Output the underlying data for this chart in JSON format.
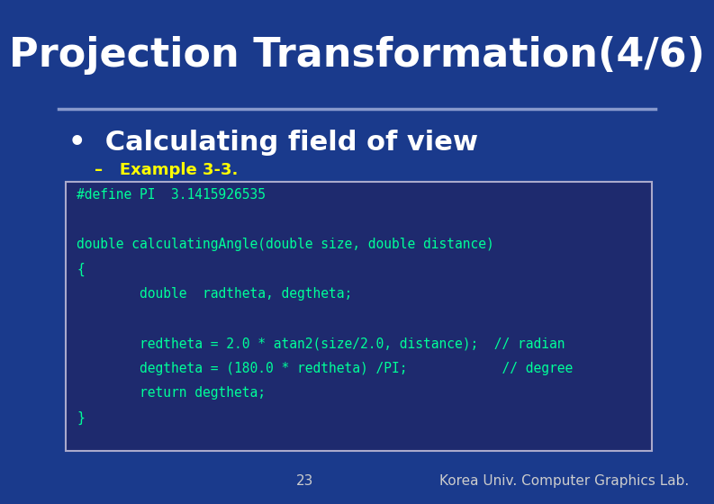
{
  "title": "Projection Transformation(4/6)",
  "background_color": "#1a3a8c",
  "title_color": "#ffffff",
  "title_fontsize": 32,
  "separator_color": "#8899cc",
  "bullet_text": "Calculating field of view",
  "bullet_color": "#ffffff",
  "bullet_fontsize": 22,
  "sub_bullet_text": "Example 3-3.",
  "sub_bullet_color": "#ffff00",
  "sub_bullet_fontsize": 13,
  "code_box_bg": "#1e2a6e",
  "code_box_border": "#aaaacc",
  "code_color": "#00ff99",
  "code_lines": [
    "#define PI  3.1415926535",
    "",
    "double calculatingAngle(double size, double distance)",
    "{",
    "        double  radtheta, degtheta;",
    "",
    "        redtheta = 2.0 * atan2(size/2.0, distance);  // radian",
    "        degtheta = (180.0 * redtheta) /PI;            // degree",
    "        return degtheta;",
    "}"
  ],
  "code_fontsize": 10.5,
  "footer_page": "23",
  "footer_lab": "Korea Univ. Computer Graphics Lab.",
  "footer_color": "#cccccc",
  "footer_fontsize": 11
}
